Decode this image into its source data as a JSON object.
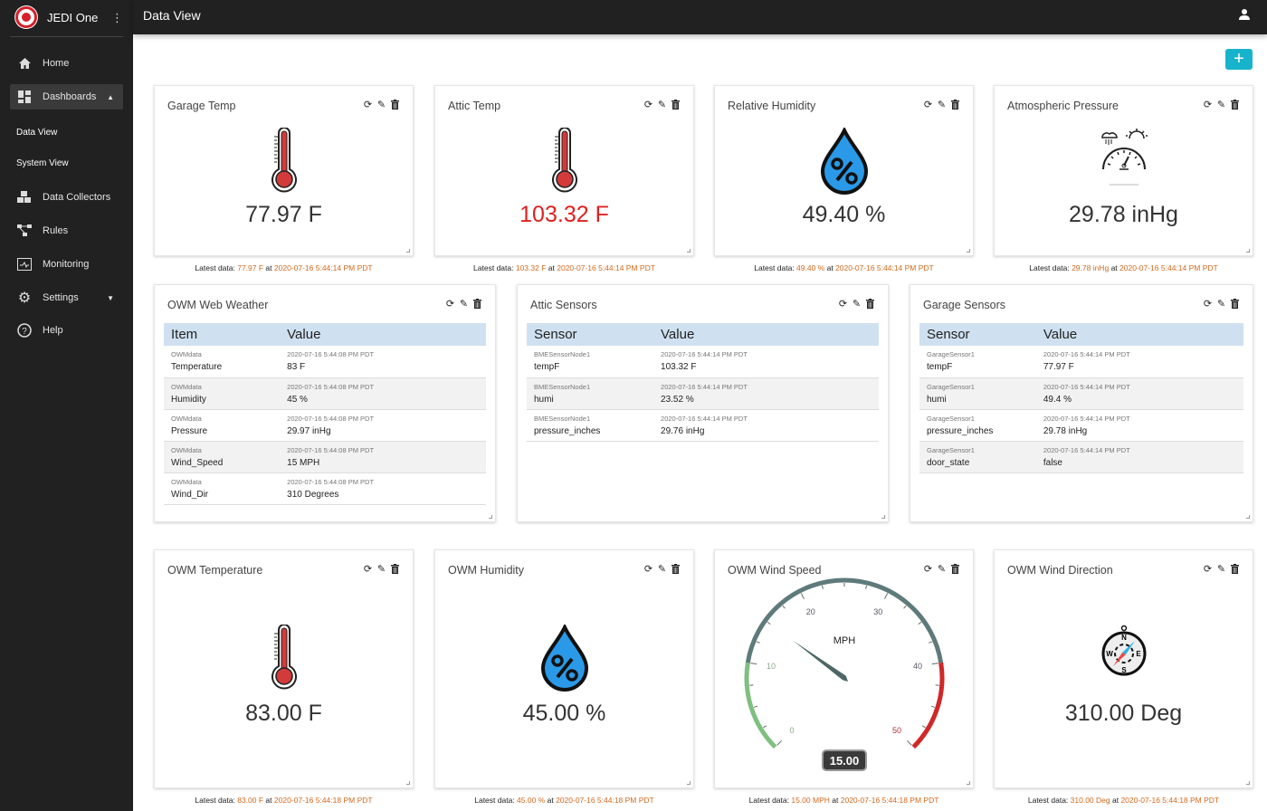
{
  "app": {
    "name": "JEDI One",
    "page_title": "Data View"
  },
  "sidebar": {
    "items": [
      {
        "label": "Home",
        "icon": "home-icon"
      },
      {
        "label": "Dashboards",
        "icon": "dashboard-icon",
        "expanded": true
      },
      {
        "label": "Data View",
        "sub": true
      },
      {
        "label": "System View",
        "sub": true
      },
      {
        "label": "Data Collectors",
        "icon": "cubes-icon"
      },
      {
        "label": "Rules",
        "icon": "rules-icon"
      },
      {
        "label": "Monitoring",
        "icon": "monitor-icon"
      },
      {
        "label": "Settings",
        "icon": "gear-icon",
        "has_caret": true
      },
      {
        "label": "Help",
        "icon": "help-icon"
      }
    ]
  },
  "toolbar": {
    "add_label": "+"
  },
  "latest_prefix": "Latest data:",
  "latest_at": "at",
  "colors": {
    "accent": "#17b3cc",
    "alert": "#e02020",
    "timestamp": "#d2691e",
    "table_header": "#cfe1f0"
  },
  "metric_cards": [
    {
      "title": "Garage Temp",
      "icon": "thermometer",
      "value": "77.97 F",
      "latest_value": "77.97 F",
      "latest_time": "2020-07-16 5:44:14 PM PDT"
    },
    {
      "title": "Attic Temp",
      "icon": "thermometer",
      "value": "103.32 F",
      "alert": true,
      "latest_value": "103.32 F",
      "latest_time": "2020-07-16 5:44:14 PM PDT"
    },
    {
      "title": "Relative Humidity",
      "icon": "drop",
      "value": "49.40 %",
      "latest_value": "49.40 %",
      "latest_time": "2020-07-16 5:44:14 PM PDT"
    },
    {
      "title": "Atmospheric Pressure",
      "icon": "barometer",
      "value": "29.78 inHg",
      "latest_value": "29.78 inHg",
      "latest_time": "2020-07-16 5:44:14 PM PDT"
    },
    {
      "title": "OWM Temperature",
      "icon": "thermometer",
      "value": "83.00 F",
      "latest_value": "83.00 F",
      "latest_time": "2020-07-16 5:44:18 PM PDT"
    },
    {
      "title": "OWM Humidity",
      "icon": "drop",
      "value": "45.00 %",
      "latest_value": "45.00 %",
      "latest_time": "2020-07-16 5:44:18 PM PDT"
    },
    {
      "title": "OWM Wind Speed",
      "icon": "gauge",
      "latest_value": "15.00 MPH",
      "latest_time": "2020-07-16 5:44:18 PM PDT",
      "gauge": {
        "unit": "MPH",
        "value": 15,
        "display": "15.00",
        "min": 0,
        "max": 50,
        "ticks": [
          "0",
          "10",
          "20",
          "30",
          "40",
          "50"
        ],
        "bands": [
          {
            "from": 0,
            "to": 10,
            "color": "#7fbf7f"
          },
          {
            "from": 10,
            "to": 40,
            "color": "#5f7a7a"
          },
          {
            "from": 40,
            "to": 50,
            "color": "#d02828"
          }
        ]
      }
    },
    {
      "title": "OWM Wind Direction",
      "icon": "compass",
      "value": "310.00 Deg",
      "latest_value": "310.00 Deg",
      "latest_time": "2020-07-16 5:44:18 PM PDT"
    }
  ],
  "table_cards": [
    {
      "title": "OWM Web Weather",
      "columns": [
        "Item",
        "Value"
      ],
      "rows": [
        {
          "source": "OWMdata",
          "name": "Temperature",
          "time": "2020-07-16 5:44:08 PM PDT",
          "value": "83 F"
        },
        {
          "source": "OWMdata",
          "name": "Humidity",
          "time": "2020-07-16 5:44:08 PM PDT",
          "value": "45 %"
        },
        {
          "source": "OWMdata",
          "name": "Pressure",
          "time": "2020-07-16 5:44:08 PM PDT",
          "value": "29.97 inHg"
        },
        {
          "source": "OWMdata",
          "name": "Wind_Speed",
          "time": "2020-07-16 5:44:08 PM PDT",
          "value": "15 MPH"
        },
        {
          "source": "OWMdata",
          "name": "Wind_Dir",
          "time": "2020-07-16 5:44:08 PM PDT",
          "value": "310 Degrees"
        }
      ]
    },
    {
      "title": "Attic Sensors",
      "columns": [
        "Sensor",
        "Value"
      ],
      "rows": [
        {
          "source": "BMESensorNode1",
          "name": "tempF",
          "time": "2020-07-16 5:44:14 PM PDT",
          "value": "103.32 F"
        },
        {
          "source": "BMESensorNode1",
          "name": "humi",
          "time": "2020-07-16 5:44:14 PM PDT",
          "value": "23.52 %"
        },
        {
          "source": "BMESensorNode1",
          "name": "pressure_inches",
          "time": "2020-07-16 5:44:14 PM PDT",
          "value": "29.76 inHg"
        }
      ]
    },
    {
      "title": "Garage Sensors",
      "columns": [
        "Sensor",
        "Value"
      ],
      "rows": [
        {
          "source": "GarageSensor1",
          "name": "tempF",
          "time": "2020-07-16 5:44:14 PM PDT",
          "value": "77.97 F"
        },
        {
          "source": "GarageSensor1",
          "name": "humi",
          "time": "2020-07-16 5:44:14 PM PDT",
          "value": "49.4 %"
        },
        {
          "source": "GarageSensor1",
          "name": "pressure_inches",
          "time": "2020-07-16 5:44:14 PM PDT",
          "value": "29.78 inHg"
        },
        {
          "source": "GarageSensor1",
          "name": "door_state",
          "time": "2020-07-16 5:44:14 PM PDT",
          "value": "false"
        }
      ]
    }
  ]
}
